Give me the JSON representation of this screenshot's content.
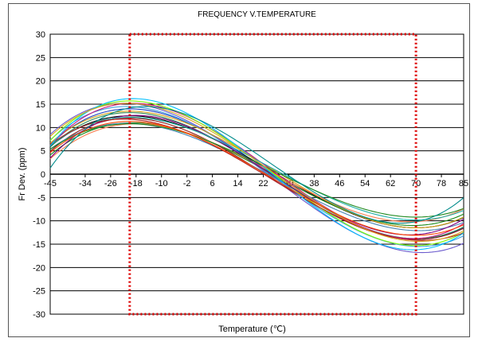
{
  "chart_data": {
    "type": "line",
    "title": "FREQUENCY V.TEMPERATURE",
    "xlabel": "Temperature (℃)",
    "ylabel": "Fr Dev. (ppm)",
    "xlim": [
      -45,
      85
    ],
    "ylim": [
      -30,
      30
    ],
    "x_ticks": [
      -45,
      -34,
      -26,
      -18,
      -10,
      -2,
      6,
      14,
      22,
      30,
      38,
      46,
      54,
      62,
      70,
      78,
      85
    ],
    "y_ticks": [
      30,
      25,
      20,
      15,
      10,
      5,
      0,
      -5,
      -10,
      -15,
      -20,
      -25,
      -30
    ],
    "grid": "horizontal",
    "legend": "none",
    "spec_box": {
      "x_range": [
        -20,
        70
      ],
      "y_range": [
        -30,
        30
      ],
      "color": "#dd0000",
      "style": "dotted"
    },
    "series_model": "cubic f(T) = a*(T-25) + c*(T-25)^3 + offset",
    "series": [
      {
        "x1": -20,
        "y1": 14.0,
        "offset": 0.0,
        "color": "#1f3fbf"
      },
      {
        "x1": -20,
        "y1": 12.0,
        "offset": 0.5,
        "color": "#000000"
      },
      {
        "x1": -21,
        "y1": 15.0,
        "offset": -0.5,
        "color": "#3fa0e0"
      },
      {
        "x1": -19,
        "y1": 11.0,
        "offset": 0.0,
        "color": "#1a8a1a"
      },
      {
        "x1": -20,
        "y1": 13.0,
        "offset": -1.0,
        "color": "#8b1a1a"
      },
      {
        "x1": -22,
        "y1": 16.0,
        "offset": -0.8,
        "color": "#6a5acd"
      },
      {
        "x1": -20,
        "y1": 12.5,
        "offset": 1.0,
        "color": "#d4a017"
      },
      {
        "x1": -18,
        "y1": 10.5,
        "offset": 0.3,
        "color": "#ff7f50"
      },
      {
        "x1": -20,
        "y1": 13.5,
        "offset": -0.3,
        "color": "#2e8b57"
      },
      {
        "x1": -19,
        "y1": 14.5,
        "offset": 0.7,
        "color": "#c71585"
      },
      {
        "x1": -21,
        "y1": 11.5,
        "offset": -0.6,
        "color": "#4682b4"
      },
      {
        "x1": -20,
        "y1": 15.5,
        "offset": 0.2,
        "color": "#7cfc00"
      },
      {
        "x1": -18,
        "y1": 12.8,
        "offset": -0.2,
        "color": "#800080"
      },
      {
        "x1": -20,
        "y1": 11.0,
        "offset": 1.2,
        "color": "#20b2aa"
      },
      {
        "x1": -22,
        "y1": 13.0,
        "offset": -1.2,
        "color": "#b22222"
      },
      {
        "x1": -19,
        "y1": 16.2,
        "offset": 0.0,
        "color": "#00bfff"
      },
      {
        "x1": -20,
        "y1": 10.0,
        "offset": 0.8,
        "color": "#228b22"
      },
      {
        "x1": -21,
        "y1": 14.8,
        "offset": 0.4,
        "color": "#daa520"
      },
      {
        "x1": -15,
        "y1": 12.5,
        "offset": 2.0,
        "color": "#008b8b"
      },
      {
        "x1": -20,
        "y1": 12.2,
        "offset": -0.9,
        "color": "#ff4500"
      }
    ]
  }
}
